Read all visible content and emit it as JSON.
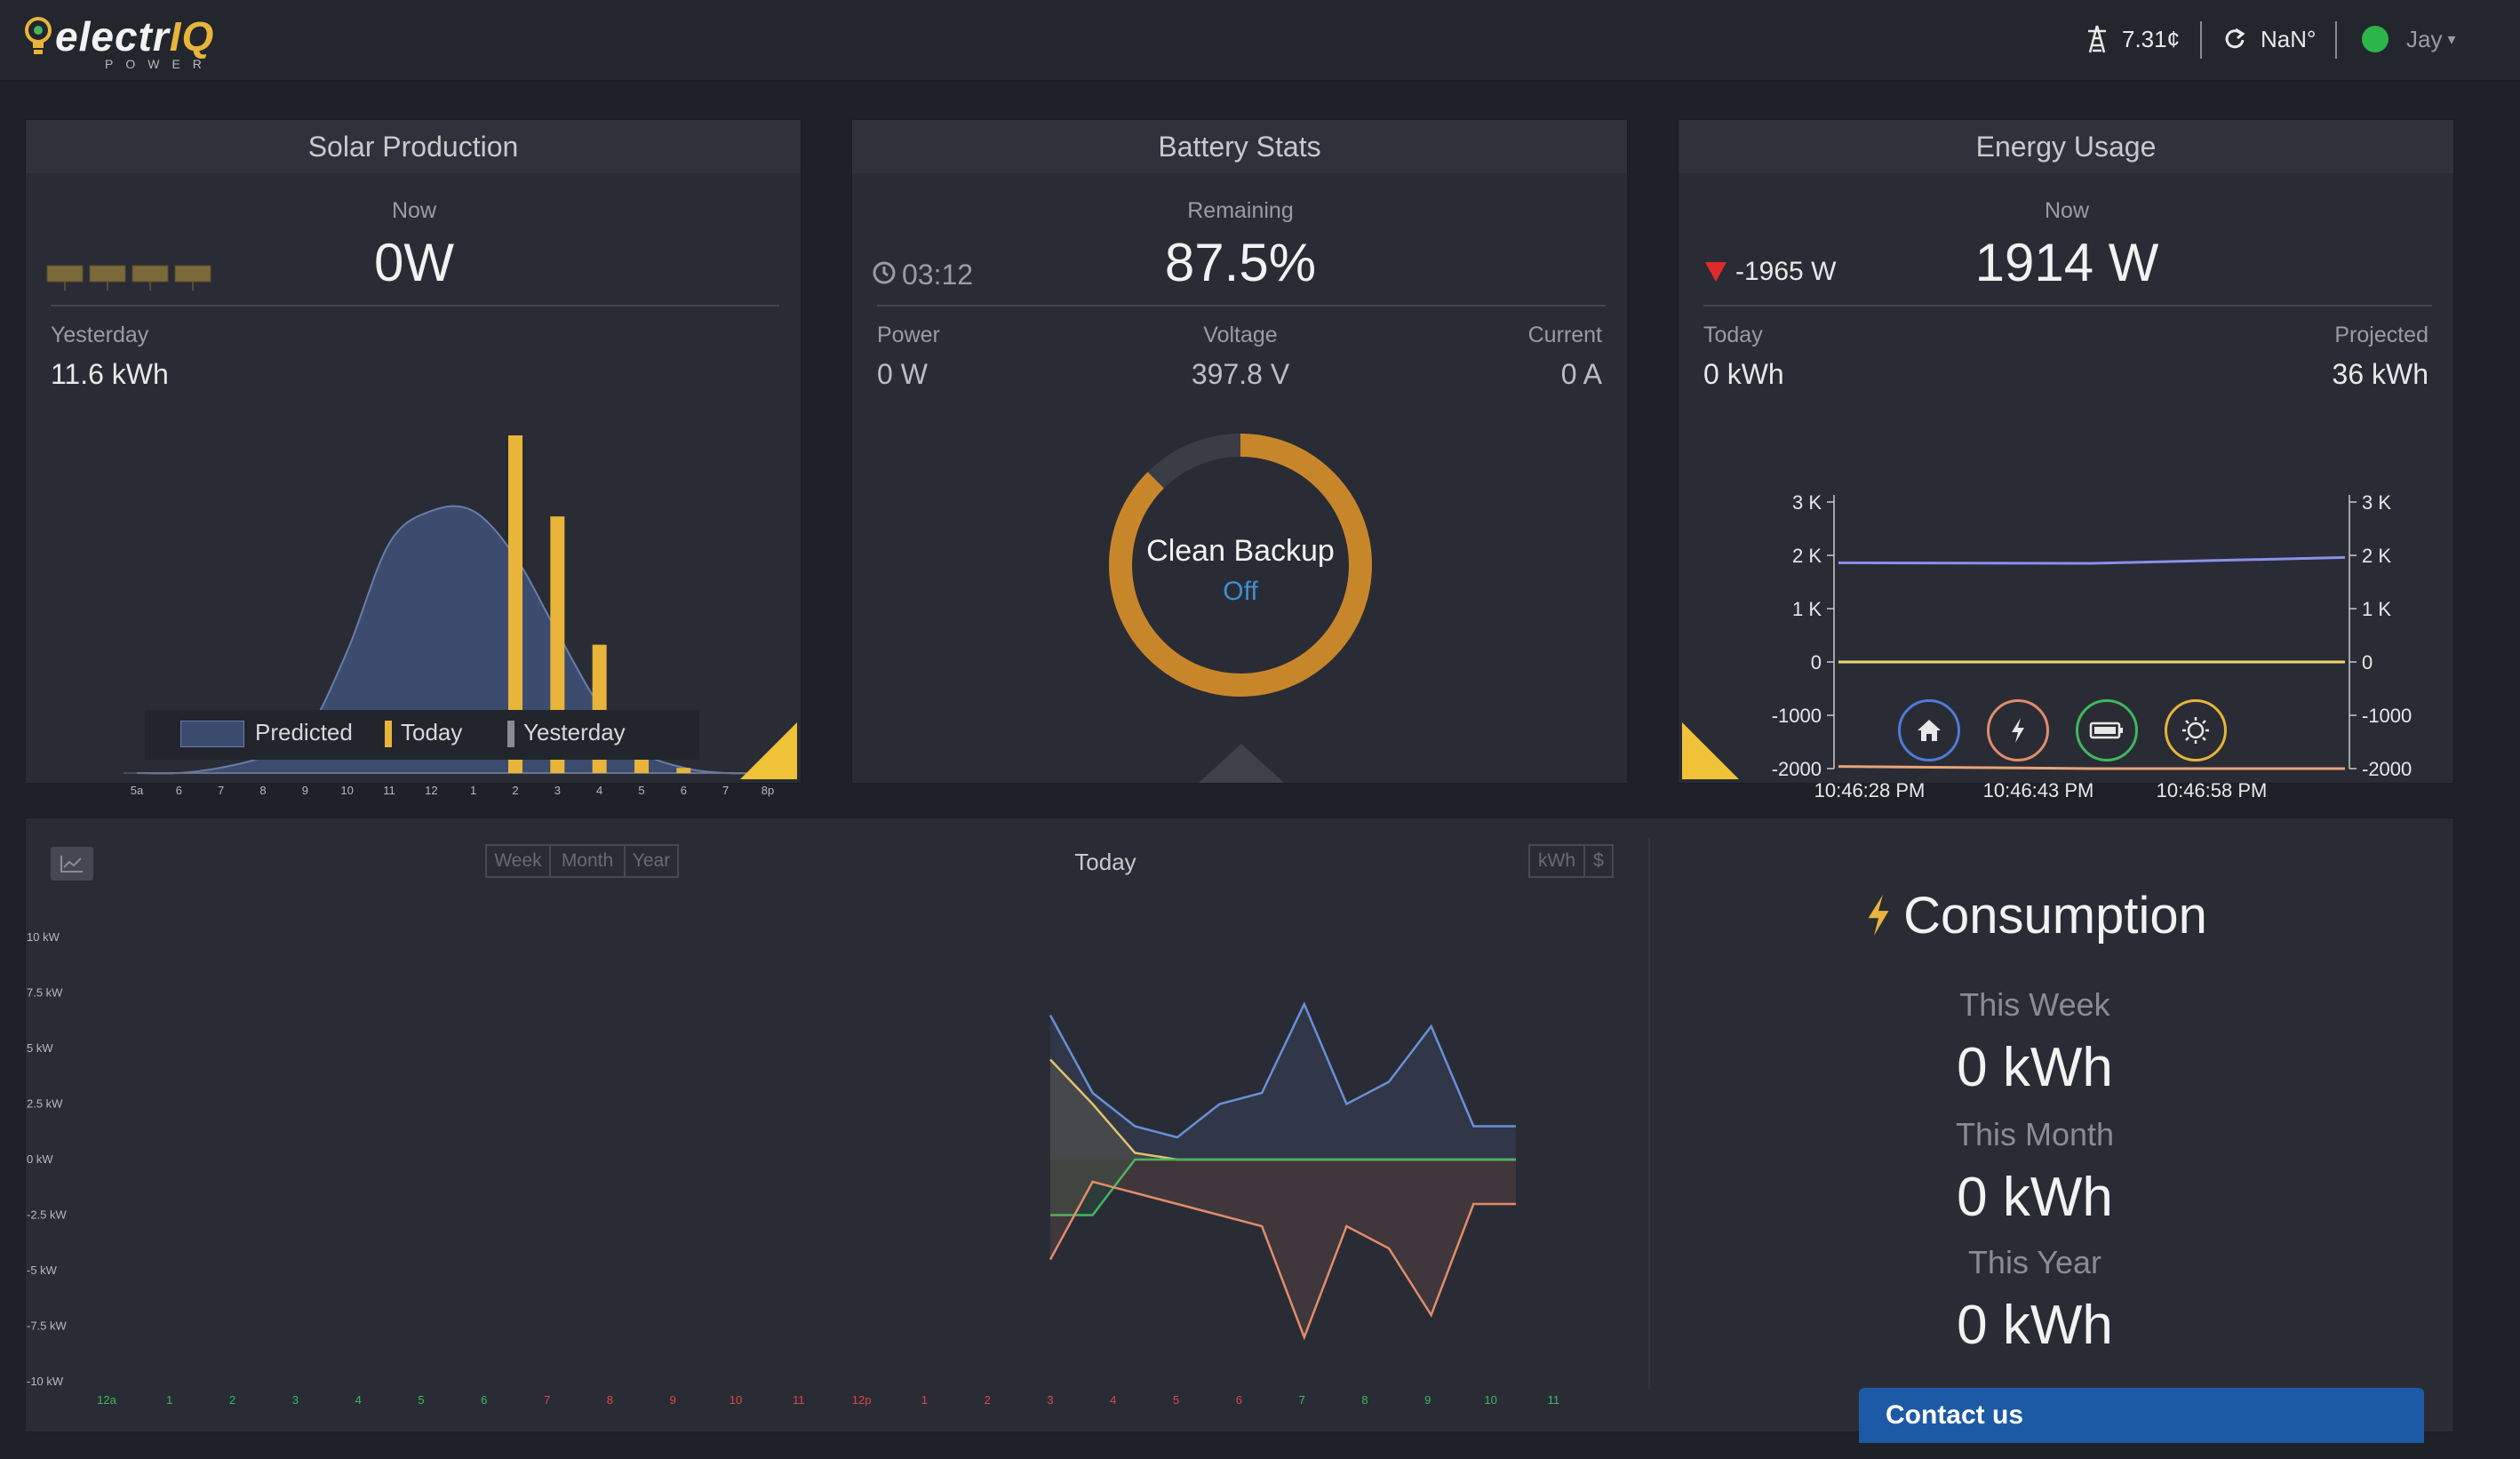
{
  "header": {
    "logo_main": "electr",
    "logo_iq": "IQ",
    "logo_sub": "POWER",
    "rate": "7.31¢",
    "weather": "NaN°",
    "user": "Jay"
  },
  "solar": {
    "title": "Solar Production",
    "now_label": "Now",
    "now_value": "0W",
    "yesterday_label": "Yesterday",
    "yesterday_value": "11.6 kWh",
    "x_ticks": [
      "5a",
      "6",
      "7",
      "8",
      "9",
      "10",
      "11",
      "12",
      "1",
      "2",
      "3",
      "4",
      "5",
      "6",
      "7",
      "8p"
    ],
    "legend": [
      "Predicted",
      "Today",
      "Yesterday"
    ],
    "chart_data": {
      "type": "area",
      "categories": [
        "5a",
        "6",
        "7",
        "8",
        "9",
        "10",
        "11",
        "12",
        "1",
        "2",
        "3",
        "4",
        "5",
        "6",
        "7",
        "8p"
      ],
      "series": [
        {
          "name": "Predicted",
          "values": [
            0,
            0,
            0.02,
            0.06,
            0.14,
            0.45,
            0.85,
            0.97,
            0.97,
            0.8,
            0.52,
            0.25,
            0.08,
            0.02,
            0,
            0
          ]
        },
        {
          "name": "Today",
          "values": [
            0,
            0,
            0,
            0,
            0,
            0,
            0,
            0,
            0,
            1.0,
            0.76,
            0.38,
            0.05,
            0.015,
            0,
            0
          ]
        }
      ]
    }
  },
  "battery": {
    "title": "Battery Stats",
    "remaining_label": "Remaining",
    "remaining_value": "87.5%",
    "time": "03:12",
    "power_label": "Power",
    "power_value": "0 W",
    "voltage_label": "Voltage",
    "voltage_value": "397.8 V",
    "current_label": "Current",
    "current_value": "0 A",
    "mode_label": "Clean Backup",
    "mode_state": "Off",
    "charge_fraction": 0.875
  },
  "energy": {
    "title": "Energy Usage",
    "now_label": "Now",
    "now_value": "1914 W",
    "delta_value": "-1965 W",
    "today_label": "Today",
    "today_value": "0 kWh",
    "projected_label": "Projected",
    "projected_value": "36 kWh",
    "y_ticks": [
      "3 K",
      "2 K",
      "1 K",
      "0",
      "-1000",
      "-2000"
    ],
    "x_ticks": [
      "10:46:28 PM",
      "10:46:43 PM",
      "10:46:58 PM"
    ],
    "chart_data": {
      "type": "line",
      "x": [
        "10:46:28 PM",
        "10:46:43 PM",
        "10:46:58 PM"
      ],
      "ylim": [
        -2000,
        3000
      ],
      "series": [
        {
          "values": [
            1860,
            1850,
            1960
          ]
        },
        {
          "values": [
            0,
            0,
            0
          ]
        },
        {
          "values": [
            -1960,
            -2000,
            -2000
          ]
        }
      ]
    }
  },
  "history": {
    "title": "Today",
    "ranges": [
      "Week",
      "Month",
      "Year"
    ],
    "units": [
      "kWh",
      "$"
    ],
    "y_ticks": [
      "10 kW",
      "7.5 kW",
      "5 kW",
      "2.5 kW",
      "0 kW",
      "-2.5 kW",
      "-5 kW",
      "-7.5 kW",
      "-10 kW"
    ],
    "x_ticks": [
      "12a",
      "1",
      "2",
      "3",
      "4",
      "5",
      "6",
      "7",
      "8",
      "9",
      "10",
      "11",
      "12p",
      "1",
      "2",
      "3",
      "4",
      "5",
      "6",
      "7",
      "8",
      "9",
      "10",
      "11"
    ],
    "chart_data": {
      "type": "line",
      "ylim": [
        -10,
        10
      ],
      "x_range": [
        "3p",
        "10p"
      ],
      "series": [
        {
          "color": "#6a8fd8",
          "values": [
            6.5,
            3,
            1.5,
            1,
            2.5,
            3,
            7,
            2.5,
            3.5,
            6,
            1.5,
            1.5
          ]
        },
        {
          "color": "#e1c46a",
          "values": [
            4.5,
            2.5,
            0.3,
            0,
            0,
            0,
            0,
            0,
            0,
            0,
            0,
            0
          ]
        },
        {
          "color": "#3fb860",
          "values": [
            -2.5,
            -2.5,
            0,
            0,
            0,
            0,
            0,
            0,
            0,
            0,
            0,
            0
          ]
        },
        {
          "color": "#e28c6b",
          "values": [
            -4.5,
            -1,
            -1.5,
            -2,
            -2.5,
            -3,
            -8,
            -3,
            -4,
            -7,
            -2,
            -2
          ]
        }
      ]
    }
  },
  "consumption": {
    "title": "Consumption",
    "week_label": "This Week",
    "week_value": "0 kWh",
    "month_label": "This Month",
    "month_value": "0 kWh",
    "year_label": "This Year",
    "year_value": "0 kWh",
    "contact": "Contact us"
  }
}
